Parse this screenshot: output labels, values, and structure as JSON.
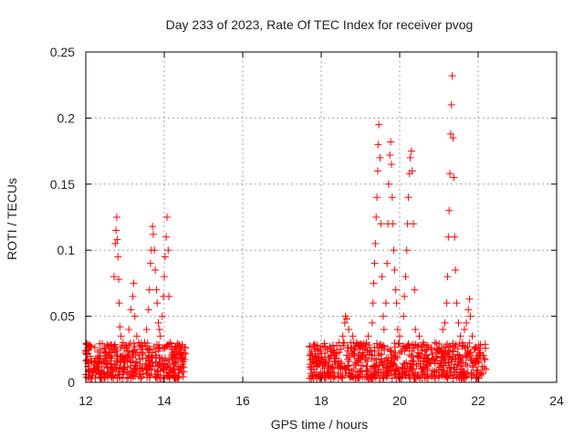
{
  "chart_data": {
    "type": "scatter",
    "title": "Day 233 of 2023, Rate Of TEC Index for receiver pvog",
    "xlabel": "GPS time / hours",
    "ylabel": "ROTI / TECUs",
    "xlim": [
      12,
      24
    ],
    "ylim": [
      0,
      0.25
    ],
    "x_ticks": [
      12,
      14,
      16,
      18,
      20,
      22,
      24
    ],
    "y_ticks": [
      0,
      0.05,
      0.1,
      0.15,
      0.2,
      0.25
    ],
    "y_tick_labels": [
      "0",
      "0.05",
      "0.1",
      "0.15",
      "0.2",
      "0.25"
    ],
    "grid": true,
    "marker": "+",
    "color": "#ff0000",
    "series": [
      {
        "name": "ROTI",
        "points": [
          [
            12.05,
            0.012
          ],
          [
            12.1,
            0.008
          ],
          [
            12.15,
            0.015
          ],
          [
            12.2,
            0.01
          ],
          [
            12.25,
            0.018
          ],
          [
            12.3,
            0.012
          ],
          [
            12.35,
            0.02
          ],
          [
            12.4,
            0.009
          ],
          [
            12.45,
            0.016
          ],
          [
            12.5,
            0.022
          ],
          [
            12.55,
            0.011
          ],
          [
            12.6,
            0.019
          ],
          [
            12.65,
            0.014
          ],
          [
            12.7,
            0.025
          ],
          [
            12.72,
            0.08
          ],
          [
            12.75,
            0.105
          ],
          [
            12.77,
            0.115
          ],
          [
            12.79,
            0.125
          ],
          [
            12.8,
            0.108
          ],
          [
            12.82,
            0.095
          ],
          [
            12.84,
            0.078
          ],
          [
            12.85,
            0.06
          ],
          [
            12.87,
            0.042
          ],
          [
            12.9,
            0.035
          ],
          [
            12.95,
            0.03
          ],
          [
            13.0,
            0.028
          ],
          [
            13.05,
            0.024
          ],
          [
            13.1,
            0.04
          ],
          [
            13.15,
            0.055
          ],
          [
            13.2,
            0.065
          ],
          [
            13.22,
            0.075
          ],
          [
            13.25,
            0.05
          ],
          [
            13.3,
            0.035
          ],
          [
            13.35,
            0.03
          ],
          [
            13.4,
            0.025
          ],
          [
            13.45,
            0.022
          ],
          [
            13.5,
            0.03
          ],
          [
            13.55,
            0.04
          ],
          [
            13.6,
            0.055
          ],
          [
            13.62,
            0.07
          ],
          [
            13.65,
            0.09
          ],
          [
            13.67,
            0.1
          ],
          [
            13.7,
            0.118
          ],
          [
            13.72,
            0.112
          ],
          [
            13.75,
            0.1
          ],
          [
            13.77,
            0.085
          ],
          [
            13.8,
            0.07
          ],
          [
            13.82,
            0.06
          ],
          [
            13.85,
            0.045
          ],
          [
            13.88,
            0.04
          ],
          [
            13.9,
            0.035
          ],
          [
            13.95,
            0.05
          ],
          [
            13.98,
            0.065
          ],
          [
            14.0,
            0.08
          ],
          [
            14.02,
            0.095
          ],
          [
            14.05,
            0.11
          ],
          [
            14.07,
            0.125
          ],
          [
            14.1,
            0.1
          ],
          [
            14.12,
            0.065
          ],
          [
            14.15,
            0.03
          ],
          [
            14.2,
            0.025
          ],
          [
            14.25,
            0.02
          ],
          [
            14.3,
            0.015
          ],
          [
            14.35,
            0.028
          ],
          [
            14.4,
            0.022
          ],
          [
            14.45,
            0.012
          ],
          [
            14.5,
            0.008
          ],
          [
            17.75,
            0.01
          ],
          [
            17.8,
            0.015
          ],
          [
            17.85,
            0.02
          ],
          [
            17.9,
            0.012
          ],
          [
            17.95,
            0.018
          ],
          [
            18.0,
            0.022
          ],
          [
            18.05,
            0.014
          ],
          [
            18.1,
            0.019
          ],
          [
            18.15,
            0.025
          ],
          [
            18.2,
            0.016
          ],
          [
            18.25,
            0.02
          ],
          [
            18.3,
            0.028
          ],
          [
            18.35,
            0.018
          ],
          [
            18.4,
            0.022
          ],
          [
            18.45,
            0.03
          ],
          [
            18.5,
            0.025
          ],
          [
            18.55,
            0.035
          ],
          [
            18.6,
            0.045
          ],
          [
            18.62,
            0.05
          ],
          [
            18.65,
            0.048
          ],
          [
            18.7,
            0.04
          ],
          [
            18.75,
            0.03
          ],
          [
            18.8,
            0.035
          ],
          [
            18.85,
            0.025
          ],
          [
            18.9,
            0.03
          ],
          [
            18.95,
            0.022
          ],
          [
            19.0,
            0.028
          ],
          [
            19.05,
            0.02
          ],
          [
            19.1,
            0.025
          ],
          [
            19.15,
            0.03
          ],
          [
            19.2,
            0.035
          ],
          [
            19.3,
            0.045
          ],
          [
            19.32,
            0.06
          ],
          [
            19.34,
            0.075
          ],
          [
            19.36,
            0.09
          ],
          [
            19.38,
            0.105
          ],
          [
            19.4,
            0.125
          ],
          [
            19.42,
            0.14
          ],
          [
            19.44,
            0.16
          ],
          [
            19.45,
            0.18
          ],
          [
            19.47,
            0.195
          ],
          [
            19.5,
            0.17
          ],
          [
            19.52,
            0.12
          ],
          [
            19.55,
            0.08
          ],
          [
            19.58,
            0.05
          ],
          [
            19.6,
            0.04
          ],
          [
            19.65,
            0.06
          ],
          [
            19.68,
            0.09
          ],
          [
            19.7,
            0.12
          ],
          [
            19.72,
            0.15
          ],
          [
            19.75,
            0.172
          ],
          [
            19.77,
            0.182
          ],
          [
            19.79,
            0.165
          ],
          [
            19.81,
            0.14
          ],
          [
            19.83,
            0.12
          ],
          [
            19.85,
            0.1
          ],
          [
            19.87,
            0.085
          ],
          [
            19.9,
            0.07
          ],
          [
            19.92,
            0.06
          ],
          [
            19.95,
            0.04
          ],
          [
            20.0,
            0.035
          ],
          [
            20.1,
            0.05
          ],
          [
            20.12,
            0.065
          ],
          [
            20.15,
            0.08
          ],
          [
            20.18,
            0.1
          ],
          [
            20.2,
            0.12
          ],
          [
            20.22,
            0.14
          ],
          [
            20.25,
            0.158
          ],
          [
            20.27,
            0.17
          ],
          [
            20.3,
            0.175
          ],
          [
            20.32,
            0.16
          ],
          [
            20.35,
            0.12
          ],
          [
            20.38,
            0.07
          ],
          [
            20.4,
            0.04
          ],
          [
            20.5,
            0.035
          ],
          [
            20.6,
            0.03
          ],
          [
            20.7,
            0.028
          ],
          [
            20.8,
            0.025
          ],
          [
            20.9,
            0.03
          ],
          [
            21.0,
            0.025
          ],
          [
            21.1,
            0.04
          ],
          [
            21.15,
            0.045
          ],
          [
            21.2,
            0.06
          ],
          [
            21.22,
            0.08
          ],
          [
            21.24,
            0.11
          ],
          [
            21.26,
            0.13
          ],
          [
            21.28,
            0.158
          ],
          [
            21.3,
            0.188
          ],
          [
            21.32,
            0.21
          ],
          [
            21.34,
            0.232
          ],
          [
            21.36,
            0.185
          ],
          [
            21.38,
            0.155
          ],
          [
            21.4,
            0.11
          ],
          [
            21.42,
            0.085
          ],
          [
            21.45,
            0.06
          ],
          [
            21.5,
            0.045
          ],
          [
            21.55,
            0.035
          ],
          [
            21.6,
            0.03
          ],
          [
            21.65,
            0.04
          ],
          [
            21.7,
            0.045
          ],
          [
            21.75,
            0.055
          ],
          [
            21.78,
            0.063
          ],
          [
            21.8,
            0.05
          ],
          [
            21.85,
            0.035
          ],
          [
            21.9,
            0.025
          ],
          [
            21.95,
            0.02
          ],
          [
            22.0,
            0.015
          ],
          [
            22.05,
            0.022
          ],
          [
            22.1,
            0.012
          ],
          [
            22.15,
            0.018
          ],
          [
            22.2,
            0.01
          ]
        ]
      }
    ],
    "bands": [
      {
        "x_start": 12.0,
        "x_end": 14.55,
        "y_low": 0.003,
        "y_high": 0.03,
        "count": 420
      },
      {
        "x_start": 17.7,
        "x_end": 22.2,
        "y_low": 0.003,
        "y_high": 0.03,
        "count": 700
      }
    ]
  }
}
